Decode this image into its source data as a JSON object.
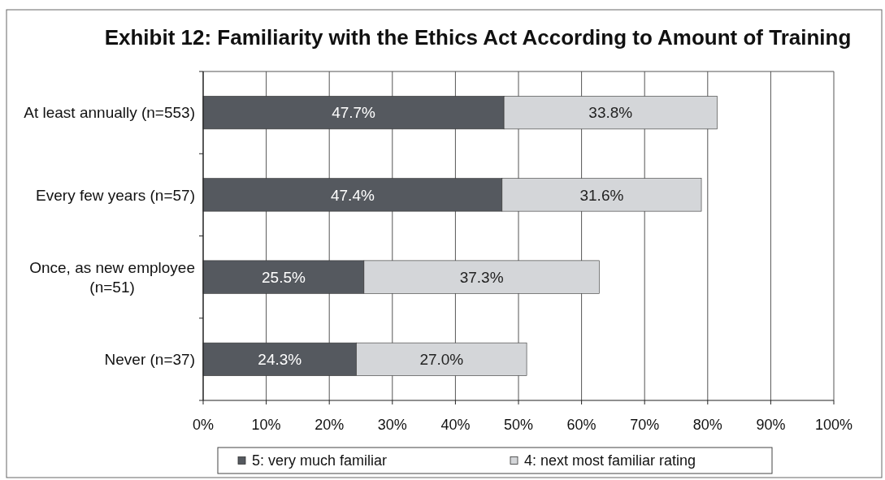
{
  "chart_data": {
    "type": "bar",
    "orientation": "horizontal",
    "stacked": true,
    "title": "Exhibit 12: Familiarity with the Ethics Act According to Amount of Training",
    "categories": [
      "At least annually (n=553)",
      "Every few years (n=57)",
      "Once, as new employee (n=51)",
      "Never (n=37)"
    ],
    "series": [
      {
        "name": "5: very much familiar",
        "color": "#55595f",
        "values": [
          47.7,
          47.4,
          25.5,
          24.3
        ],
        "value_labels": [
          "47.7%",
          "47.4%",
          "25.5%",
          "24.3%"
        ]
      },
      {
        "name": "4: next most familiar rating",
        "color": "#d4d6d9",
        "values": [
          33.8,
          31.6,
          37.3,
          27.0
        ],
        "value_labels": [
          "33.8%",
          "31.6%",
          "37.3%",
          "27.0%"
        ]
      }
    ],
    "xlim": [
      0,
      100
    ],
    "xticks": [
      {
        "value": 0,
        "label": "0%"
      },
      {
        "value": 10,
        "label": "10%"
      },
      {
        "value": 20,
        "label": "20%"
      },
      {
        "value": 30,
        "label": "30%"
      },
      {
        "value": 40,
        "label": "40%"
      },
      {
        "value": 50,
        "label": "50%"
      },
      {
        "value": 60,
        "label": "60%"
      },
      {
        "value": 70,
        "label": "70%"
      },
      {
        "value": 80,
        "label": "80%"
      },
      {
        "value": 90,
        "label": "90%"
      },
      {
        "value": 100,
        "label": "100%"
      }
    ],
    "grid": "x",
    "legend": "bottom"
  }
}
